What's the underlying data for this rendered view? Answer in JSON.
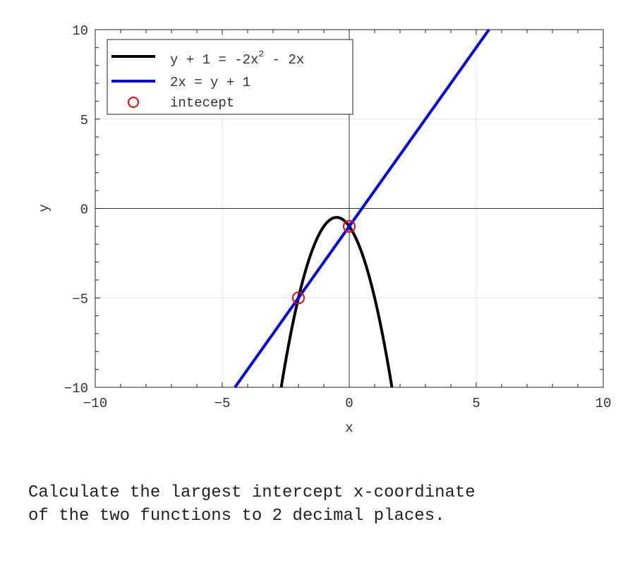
{
  "chart_data": {
    "type": "line",
    "xlabel": "x",
    "ylabel": "y",
    "xlim": [
      -10,
      10
    ],
    "ylim": [
      -10,
      10
    ],
    "xticks": [
      -10,
      -5,
      0,
      5,
      10
    ],
    "yticks": [
      -10,
      -5,
      0,
      5,
      10
    ],
    "grid": true,
    "legend_position": "top-left",
    "series": [
      {
        "name": "y + 1 = -2x^2 - 2x",
        "label_main": "y + 1 = -2x",
        "label_sup": "2",
        "label_tail": " - 2x",
        "kind": "line",
        "color": "#000000",
        "coefficients": {
          "a": -2,
          "b": -2,
          "c": -1
        }
      },
      {
        "name": "2x = y + 1",
        "kind": "line",
        "color": "#0000ff",
        "coefficients": {
          "slope": 2,
          "intercept": -1
        }
      },
      {
        "name": "intecept",
        "kind": "marker",
        "marker": "circle",
        "color": "#ff0000",
        "points": [
          {
            "x": -2,
            "y": -5
          },
          {
            "x": 0,
            "y": -1
          }
        ]
      }
    ]
  },
  "question": "Calculate the largest intercept x-coordinate\nof the two functions to 2 decimal places."
}
